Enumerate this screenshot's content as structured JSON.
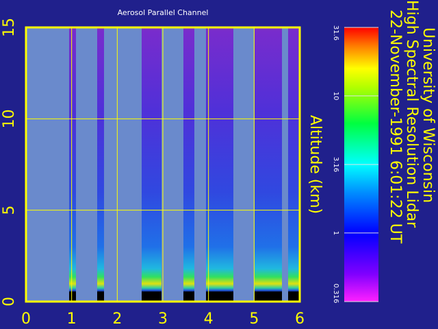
{
  "chart_data": {
    "type": "heatmap",
    "title": "Aerosol Parallel Channel",
    "y_label": "Altitude (km)",
    "annotations": [
      "University of Wisconsin",
      "High Spectral Resolution Lidar",
      "22-November-1991  6:01:22 UT"
    ],
    "xlim": [
      0,
      6
    ],
    "xticks": [
      0,
      1,
      2,
      3,
      4,
      5,
      6
    ],
    "ylim": [
      0,
      15
    ],
    "yticks": [
      0,
      5,
      10,
      15
    ],
    "grid": true,
    "colorbar": {
      "lim": [
        0.316,
        31.6
      ],
      "ticks": [
        0.316,
        1,
        3.16,
        10,
        31.6
      ],
      "log": true
    }
  }
}
